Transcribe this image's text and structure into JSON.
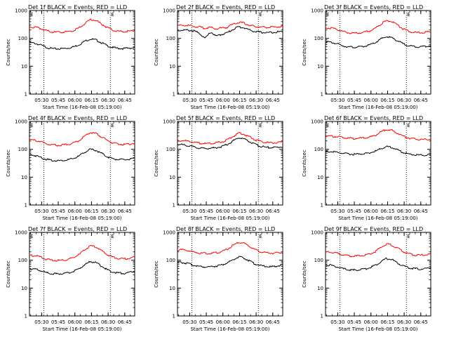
{
  "page": {
    "background": "#ffffff"
  },
  "colors": {
    "events": "#000000",
    "lld": "#ff0000",
    "axes": "#000000"
  },
  "chart_data": [
    {
      "type": "line",
      "title": "Det 1f BLACK = Events, RED = LLD",
      "xlabel": "Start Time (16-Feb-08 05:19:00)",
      "ylabel": "Counts/sec",
      "xticks": [
        "05:30",
        "05:45",
        "06:00",
        "06:15",
        "06:30",
        "06:45"
      ],
      "yticks": [
        "1",
        "10",
        "100",
        "1000"
      ],
      "ylim": [
        1,
        1000
      ],
      "yscale": "log",
      "grid": false,
      "x": [
        "05:19",
        "05:24",
        "05:29",
        "05:34",
        "05:39",
        "05:44",
        "05:49",
        "05:54",
        "05:59",
        "06:04",
        "06:09",
        "06:14",
        "06:19",
        "06:24",
        "06:29",
        "06:34",
        "06:39",
        "06:44",
        "06:49",
        "06:54"
      ],
      "markers": [
        {
          "time": "05:32",
          "label": ""
        },
        {
          "time": "06:32",
          "label": "E"
        },
        {
          "time": "06:54",
          "label": ""
        }
      ],
      "corner_label": "E",
      "series": [
        {
          "color": "#000000",
          "values": [
            70,
            66,
            58,
            48,
            43,
            42,
            43,
            45,
            50,
            60,
            80,
            95,
            88,
            70,
            55,
            47,
            44,
            43,
            45,
            46
          ]
        },
        {
          "color": "#ff0000",
          "values": [
            260,
            250,
            230,
            190,
            170,
            165,
            168,
            175,
            195,
            240,
            340,
            480,
            440,
            330,
            250,
            200,
            180,
            175,
            178,
            190
          ]
        }
      ]
    },
    {
      "type": "line",
      "title": "Det 2f BLACK = Events, RED = LLD",
      "xlabel": "Start Time (16-Feb-08 05:19:00)",
      "ylabel": "Counts/sec",
      "xticks": [
        "05:30",
        "05:45",
        "06:00",
        "06:15",
        "06:30",
        "06:45"
      ],
      "yticks": [
        "1",
        "10",
        "100",
        "1000"
      ],
      "ylim": [
        1,
        1000
      ],
      "yscale": "log",
      "grid": false,
      "x": [
        "05:19",
        "05:24",
        "05:29",
        "05:34",
        "05:39",
        "05:44",
        "05:49",
        "05:54",
        "05:59",
        "06:04",
        "06:09",
        "06:14",
        "06:19",
        "06:24",
        "06:29",
        "06:34",
        "06:39",
        "06:44",
        "06:49",
        "06:54"
      ],
      "markers": [
        {
          "time": "05:32",
          "label": ""
        },
        {
          "time": "06:32",
          "label": "E"
        },
        {
          "time": "06:54",
          "label": ""
        }
      ],
      "corner_label": "",
      "series": [
        {
          "color": "#000000",
          "values": [
            190,
            200,
            195,
            185,
            150,
            100,
            170,
            120,
            140,
            160,
            210,
            260,
            240,
            200,
            175,
            165,
            160,
            165,
            170,
            175
          ]
        },
        {
          "color": "#ff0000",
          "values": [
            290,
            300,
            290,
            270,
            255,
            230,
            250,
            220,
            235,
            250,
            320,
            380,
            350,
            300,
            270,
            255,
            250,
            255,
            260,
            270
          ]
        }
      ]
    },
    {
      "type": "line",
      "title": "Det 3f BLACK = Events, RED = LLD",
      "xlabel": "Start Time (16-Feb-08 05:19:00)",
      "ylabel": "Counts/sec",
      "xticks": [
        "05:30",
        "05:45",
        "06:00",
        "06:15",
        "06:30",
        "06:45"
      ],
      "yticks": [
        "1",
        "10",
        "100",
        "1000"
      ],
      "ylim": [
        1,
        1000
      ],
      "yscale": "log",
      "grid": false,
      "x": [
        "05:19",
        "05:24",
        "05:29",
        "05:34",
        "05:39",
        "05:44",
        "05:49",
        "05:54",
        "05:59",
        "06:04",
        "06:09",
        "06:14",
        "06:19",
        "06:24",
        "06:29",
        "06:34",
        "06:39",
        "06:44",
        "06:49",
        "06:54"
      ],
      "markers": [
        {
          "time": "05:32",
          "label": ""
        },
        {
          "time": "06:32",
          "label": "E"
        },
        {
          "time": "06:54",
          "label": ""
        }
      ],
      "corner_label": "E",
      "series": [
        {
          "color": "#000000",
          "values": [
            75,
            72,
            65,
            55,
            50,
            48,
            49,
            52,
            58,
            70,
            95,
            115,
            105,
            82,
            64,
            55,
            51,
            50,
            52,
            55
          ]
        },
        {
          "color": "#ff0000",
          "values": [
            240,
            235,
            215,
            180,
            160,
            155,
            158,
            165,
            185,
            230,
            330,
            430,
            400,
            300,
            220,
            180,
            165,
            160,
            165,
            175
          ]
        }
      ]
    },
    {
      "type": "line",
      "title": "Det 4f BLACK = Events, RED = LLD",
      "xlabel": "Start Time (16-Feb-08 05:19:00)",
      "ylabel": "Counts/sec",
      "xticks": [
        "05:30",
        "05:45",
        "06:00",
        "06:15",
        "06:30",
        "06:45"
      ],
      "yticks": [
        "1",
        "10",
        "100",
        "1000"
      ],
      "ylim": [
        1,
        1000
      ],
      "yscale": "log",
      "grid": false,
      "x": [
        "05:19",
        "05:24",
        "05:29",
        "05:34",
        "05:39",
        "05:44",
        "05:49",
        "05:54",
        "05:59",
        "06:04",
        "06:09",
        "06:14",
        "06:19",
        "06:24",
        "06:29",
        "06:34",
        "06:39",
        "06:44",
        "06:49",
        "06:54"
      ],
      "markers": [
        {
          "time": "05:32",
          "label": ""
        },
        {
          "time": "06:32",
          "label": "E"
        },
        {
          "time": "06:54",
          "label": ""
        }
      ],
      "corner_label": "E",
      "series": [
        {
          "color": "#000000",
          "values": [
            65,
            60,
            52,
            44,
            40,
            39,
            40,
            42,
            47,
            58,
            80,
            100,
            92,
            72,
            55,
            46,
            43,
            42,
            44,
            46
          ]
        },
        {
          "color": "#ff0000",
          "values": [
            220,
            210,
            190,
            160,
            145,
            140,
            142,
            150,
            170,
            210,
            300,
            400,
            370,
            280,
            210,
            170,
            155,
            150,
            155,
            165
          ]
        }
      ]
    },
    {
      "type": "line",
      "title": "Det 5f BLACK = Events, RED = LLD",
      "xlabel": "Start Time (16-Feb-08 05:19:00)",
      "ylabel": "Counts/sec",
      "xticks": [
        "05:30",
        "05:45",
        "06:00",
        "06:15",
        "06:30",
        "06:45"
      ],
      "yticks": [
        "1",
        "10",
        "100",
        "1000"
      ],
      "ylim": [
        1,
        1000
      ],
      "yscale": "log",
      "grid": false,
      "x": [
        "05:19",
        "05:24",
        "05:29",
        "05:34",
        "05:39",
        "05:44",
        "05:49",
        "05:54",
        "05:59",
        "06:04",
        "06:09",
        "06:14",
        "06:19",
        "06:24",
        "06:29",
        "06:34",
        "06:39",
        "06:44",
        "06:49",
        "06:54"
      ],
      "markers": [
        {
          "time": "05:32",
          "label": ""
        },
        {
          "time": "06:32",
          "label": "E"
        },
        {
          "time": "06:54",
          "label": ""
        }
      ],
      "corner_label": "",
      "series": [
        {
          "color": "#000000",
          "values": [
            150,
            145,
            135,
            120,
            110,
            108,
            110,
            115,
            125,
            150,
            200,
            260,
            240,
            190,
            150,
            128,
            118,
            115,
            118,
            125
          ]
        },
        {
          "color": "#ff0000",
          "values": [
            210,
            205,
            195,
            175,
            165,
            160,
            162,
            170,
            185,
            220,
            290,
            380,
            350,
            280,
            220,
            190,
            175,
            170,
            175,
            185
          ]
        }
      ]
    },
    {
      "type": "line",
      "title": "Det 6f BLACK = Events, RED = LLD",
      "xlabel": "Start Time (16-Feb-08 05:19:00)",
      "ylabel": "Counts/sec",
      "xticks": [
        "05:30",
        "05:45",
        "06:00",
        "06:15",
        "06:30",
        "06:45"
      ],
      "yticks": [
        "1",
        "10",
        "100",
        "1000"
      ],
      "ylim": [
        1,
        1000
      ],
      "yscale": "log",
      "grid": false,
      "x": [
        "05:19",
        "05:24",
        "05:29",
        "05:34",
        "05:39",
        "05:44",
        "05:49",
        "05:54",
        "05:59",
        "06:04",
        "06:09",
        "06:14",
        "06:19",
        "06:24",
        "06:29",
        "06:34",
        "06:39",
        "06:44",
        "06:49",
        "06:54"
      ],
      "markers": [
        {
          "time": "05:32",
          "label": ""
        },
        {
          "time": "06:32",
          "label": "E"
        },
        {
          "time": "06:54",
          "label": ""
        }
      ],
      "corner_label": "E",
      "series": [
        {
          "color": "#000000",
          "values": [
            85,
            82,
            78,
            72,
            68,
            66,
            67,
            70,
            75,
            85,
            105,
            125,
            118,
            95,
            78,
            68,
            64,
            62,
            62,
            63
          ]
        },
        {
          "color": "#ff0000",
          "values": [
            300,
            295,
            285,
            265,
            250,
            245,
            248,
            255,
            275,
            320,
            420,
            520,
            480,
            380,
            300,
            255,
            235,
            225,
            225,
            230
          ]
        }
      ]
    },
    {
      "type": "line",
      "title": "Det 7f BLACK = Events, RED = LLD",
      "xlabel": "Start Time (16-Feb-08 05:19:00)",
      "ylabel": "Counts/sec",
      "xticks": [
        "05:30",
        "05:45",
        "06:00",
        "06:15",
        "06:30",
        "06:45"
      ],
      "yticks": [
        "1",
        "10",
        "100",
        "1000"
      ],
      "ylim": [
        1,
        1000
      ],
      "yscale": "log",
      "grid": false,
      "x": [
        "05:19",
        "05:24",
        "05:29",
        "05:34",
        "05:39",
        "05:44",
        "05:49",
        "05:54",
        "05:59",
        "06:04",
        "06:09",
        "06:14",
        "06:19",
        "06:24",
        "06:29",
        "06:34",
        "06:39",
        "06:44",
        "06:49",
        "06:54"
      ],
      "markers": [
        {
          "time": "05:32",
          "label": ""
        },
        {
          "time": "06:32",
          "label": "E"
        },
        {
          "time": "06:54",
          "label": ""
        }
      ],
      "corner_label": "E",
      "series": [
        {
          "color": "#000000",
          "values": [
            50,
            48,
            42,
            36,
            33,
            32,
            33,
            35,
            40,
            50,
            70,
            90,
            82,
            62,
            46,
            38,
            35,
            34,
            36,
            40
          ]
        },
        {
          "color": "#ff0000",
          "values": [
            150,
            145,
            130,
            110,
            100,
            98,
            100,
            108,
            125,
            160,
            240,
            330,
            300,
            220,
            160,
            128,
            115,
            112,
            118,
            130
          ]
        }
      ]
    },
    {
      "type": "line",
      "title": "Det 8f BLACK = Events, RED = LLD",
      "xlabel": "Start Time (16-Feb-08 05:19:00)",
      "ylabel": "Counts/sec",
      "xticks": [
        "05:30",
        "05:45",
        "06:00",
        "06:15",
        "06:30",
        "06:45"
      ],
      "yticks": [
        "1",
        "10",
        "100",
        "1000"
      ],
      "ylim": [
        1,
        1000
      ],
      "yscale": "log",
      "grid": false,
      "x": [
        "05:19",
        "05:24",
        "05:29",
        "05:34",
        "05:39",
        "05:44",
        "05:49",
        "05:54",
        "05:59",
        "06:04",
        "06:09",
        "06:14",
        "06:19",
        "06:24",
        "06:29",
        "06:34",
        "06:39",
        "06:44",
        "06:49",
        "06:54"
      ],
      "markers": [
        {
          "time": "05:32",
          "label": ""
        },
        {
          "time": "06:32",
          "label": "E"
        },
        {
          "time": "06:54",
          "label": ""
        }
      ],
      "corner_label": "",
      "series": [
        {
          "color": "#000000",
          "values": [
            85,
            82,
            75,
            66,
            60,
            58,
            59,
            62,
            68,
            80,
            105,
            130,
            120,
            95,
            74,
            64,
            60,
            58,
            62,
            68
          ]
        },
        {
          "color": "#ff0000",
          "values": [
            240,
            235,
            220,
            195,
            180,
            175,
            178,
            185,
            205,
            250,
            340,
            440,
            410,
            320,
            240,
            200,
            185,
            180,
            185,
            195
          ]
        }
      ]
    },
    {
      "type": "line",
      "title": "Det 9f BLACK = Events, RED = LLD",
      "xlabel": "Start Time (16-Feb-08 05:19:00)",
      "ylabel": "Counts/sec",
      "xticks": [
        "05:30",
        "05:45",
        "06:00",
        "06:15",
        "06:30",
        "06:45"
      ],
      "yticks": [
        "1",
        "10",
        "100",
        "1000"
      ],
      "ylim": [
        1,
        1000
      ],
      "yscale": "log",
      "grid": false,
      "x": [
        "05:19",
        "05:24",
        "05:29",
        "05:34",
        "05:39",
        "05:44",
        "05:49",
        "05:54",
        "05:59",
        "06:04",
        "06:09",
        "06:14",
        "06:19",
        "06:24",
        "06:29",
        "06:34",
        "06:39",
        "06:44",
        "06:49",
        "06:54"
      ],
      "markers": [
        {
          "time": "05:32",
          "label": ""
        },
        {
          "time": "06:32",
          "label": "E"
        },
        {
          "time": "06:54",
          "label": ""
        }
      ],
      "corner_label": "",
      "series": [
        {
          "color": "#000000",
          "values": [
            70,
            66,
            58,
            50,
            46,
            44,
            45,
            48,
            54,
            66,
            90,
            115,
            105,
            80,
            62,
            54,
            50,
            48,
            50,
            56
          ]
        },
        {
          "color": "#ff0000",
          "values": [
            200,
            195,
            180,
            158,
            145,
            140,
            142,
            150,
            168,
            205,
            290,
            380,
            350,
            270,
            205,
            170,
            155,
            150,
            155,
            165
          ]
        }
      ]
    }
  ]
}
